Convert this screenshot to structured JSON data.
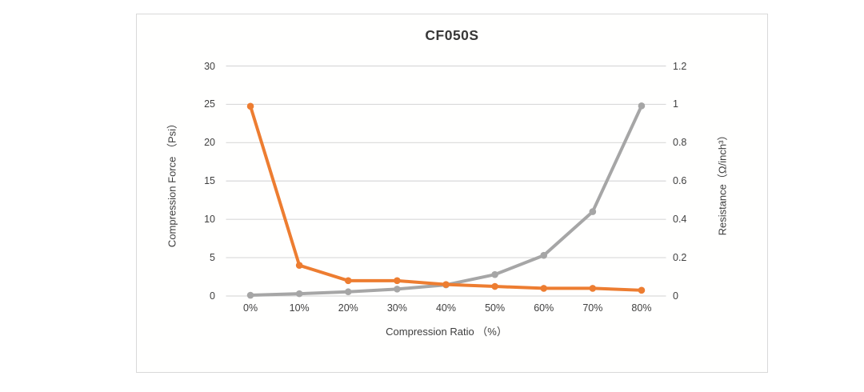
{
  "title": "CF050S",
  "colors": {
    "force_series": "#a6a6a6",
    "resistance_series": "#ed7d31",
    "gridline": "#d9d9d9",
    "chart_border": "#d9d9d9",
    "tick_text": "#404040",
    "title_text": "#383838"
  },
  "chart_data": {
    "type": "line",
    "title": "CF050S",
    "categories": [
      "0%",
      "10%",
      "20%",
      "30%",
      "40%",
      "50%",
      "60%",
      "70%",
      "80%"
    ],
    "x_axis_label": "Compression Ratio （%）",
    "grid": true,
    "legend": "none",
    "y_left": {
      "label": "Compression Force （Psi）",
      "range": [
        0,
        30
      ],
      "ticks": [
        0,
        5,
        10,
        15,
        20,
        25,
        30
      ],
      "tick_labels": [
        "0",
        "5",
        "10",
        "15",
        "20",
        "25",
        "30"
      ]
    },
    "y_right": {
      "label": "Resistance（Ω/inch³）",
      "range": [
        0,
        1.2
      ],
      "ticks": [
        0,
        0.2,
        0.4,
        0.6,
        0.8,
        1,
        1.2
      ],
      "tick_labels": [
        "0",
        "0.2",
        "0.4",
        "0.6",
        "0.8",
        "1",
        "1.2"
      ]
    },
    "series": [
      {
        "name": "Compression Force (Psi)",
        "axis": "left",
        "color": "#a6a6a6",
        "values": [
          0.1,
          0.3,
          0.55,
          0.9,
          1.45,
          2.8,
          5.3,
          11,
          24.8
        ]
      },
      {
        "name": "Resistance (Ω/inch³)",
        "axis": "right",
        "color": "#ed7d31",
        "values": [
          0.99,
          0.16,
          0.08,
          0.08,
          0.06,
          0.05,
          0.04,
          0.04,
          0.03
        ]
      }
    ]
  }
}
